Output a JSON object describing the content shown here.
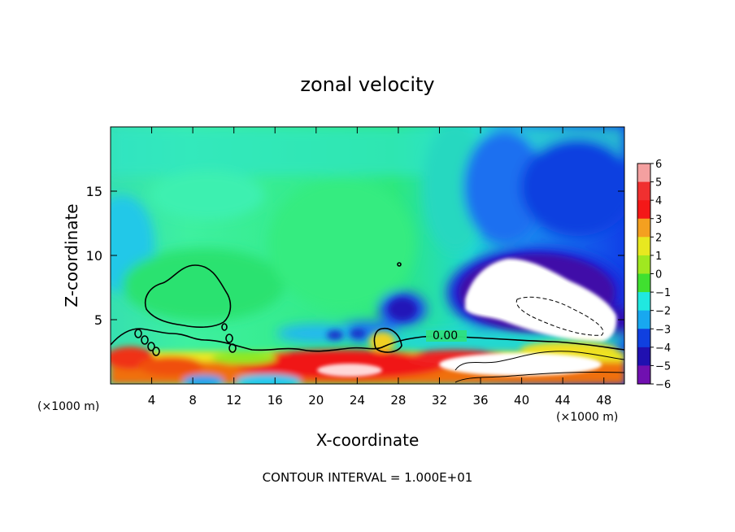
{
  "chart_data": {
    "type": "heatmap",
    "title": "zonal velocity",
    "xlabel": "X-coordinate",
    "ylabel": "Z-coordinate",
    "x_unit_label": "(×1000 m)",
    "x_unit_label_right": "(×1000 m)",
    "xlim": [
      0,
      50
    ],
    "ylim": [
      0,
      20
    ],
    "x_ticks": [
      4,
      8,
      12,
      16,
      20,
      24,
      28,
      32,
      36,
      40,
      44,
      48
    ],
    "y_ticks": [
      5,
      10,
      15
    ],
    "colorbar": {
      "levels": [
        6,
        5,
        4,
        3,
        2,
        1,
        0,
        -1,
        -2,
        -3,
        -4,
        -5,
        -6
      ],
      "labels": [
        "6",
        "5",
        "4",
        "3",
        "2",
        "1",
        "0",
        "−1",
        "−2",
        "−3",
        "−4",
        "−5",
        "−6"
      ]
    },
    "contour_label": "0.00",
    "footer": "CONTOUR INTERVAL = 1.000E+01",
    "features": [
      {
        "name": "strong-easterly-core",
        "x_range": [
          35,
          47
        ],
        "z_range": [
          4,
          9.5
        ],
        "value": -6
      },
      {
        "name": "surface-westerly-layer",
        "x_range": [
          0,
          50
        ],
        "z_range": [
          0,
          3.5
        ],
        "value": 4
      }
    ]
  }
}
